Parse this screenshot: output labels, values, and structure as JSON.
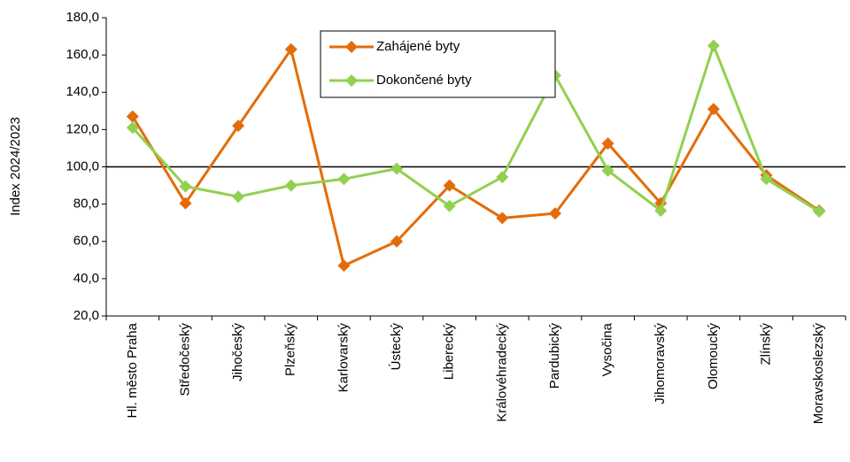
{
  "chart_data": {
    "type": "line",
    "y_label": "Index 2024/2023",
    "categories": [
      "Hl. město Praha",
      "Středočeský",
      "Jihočeský",
      "Plzeňský",
      "Karlovarský",
      "Ústecký",
      "Liberecký",
      "Královéhradecký",
      "Pardubický",
      "Vysočina",
      "Jihomoravský",
      "Olomoucký",
      "Zlínský",
      "Moravskoslezský"
    ],
    "series": [
      {
        "name": "Zahájené byty",
        "color": "#e36c0a",
        "values": [
          127,
          80.5,
          122,
          163,
          47,
          60,
          90,
          72.5,
          75,
          112.5,
          80.5,
          131,
          95.5,
          76.5
        ]
      },
      {
        "name": "Dokončené byty",
        "color": "#92d050",
        "values": [
          121,
          89.5,
          84,
          90,
          93.5,
          99,
          79,
          94.5,
          149,
          98,
          76.5,
          165,
          93.5,
          76
        ]
      }
    ],
    "reference_line": 100,
    "ylim": [
      20,
      180
    ],
    "yticks": [
      {
        "value": 20,
        "label": "20,0"
      },
      {
        "value": 40,
        "label": "40,0"
      },
      {
        "value": 60,
        "label": "60,0"
      },
      {
        "value": 80,
        "label": "80,0"
      },
      {
        "value": 100,
        "label": "100,0"
      },
      {
        "value": 120,
        "label": "120,0"
      },
      {
        "value": 140,
        "label": "140,0"
      },
      {
        "value": 160,
        "label": "160,0"
      },
      {
        "value": 180,
        "label": "180,0"
      }
    ]
  }
}
